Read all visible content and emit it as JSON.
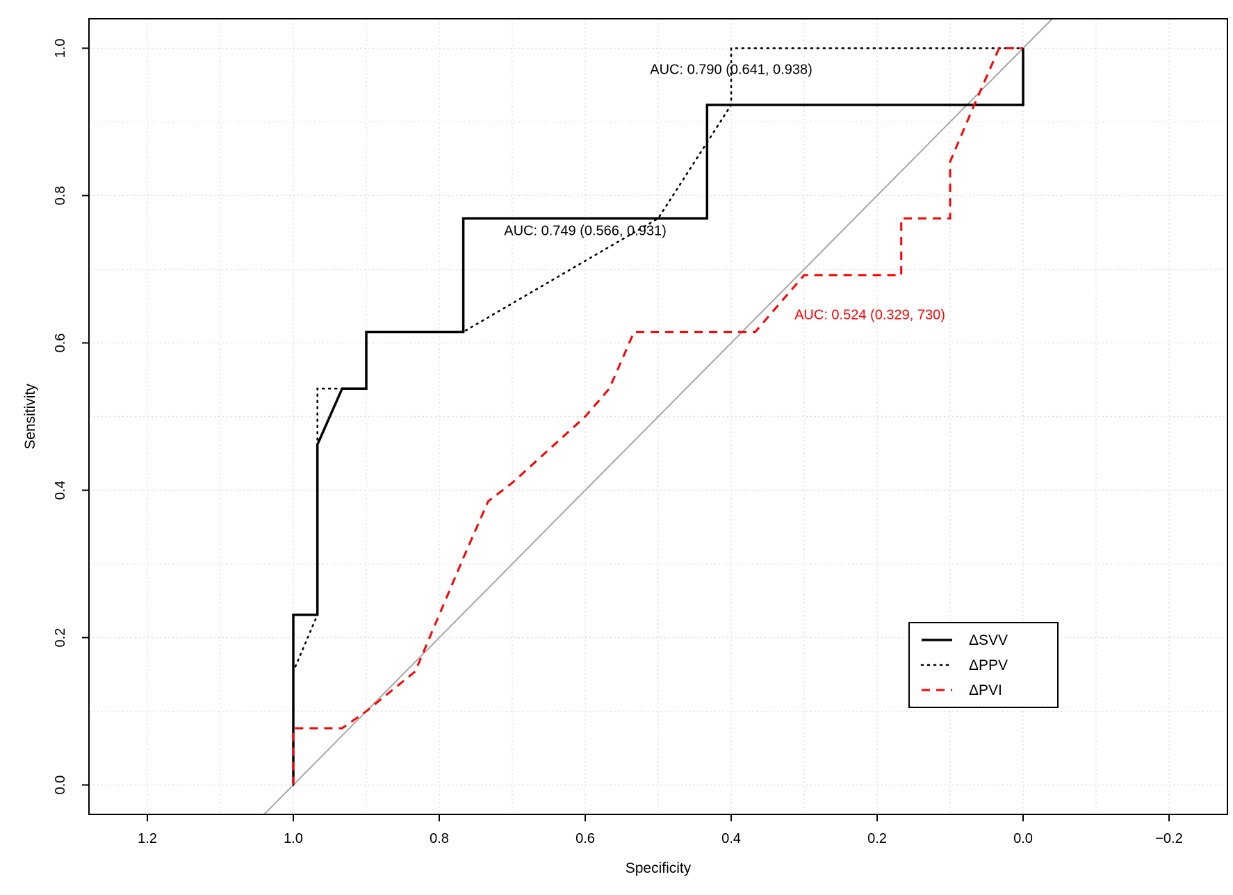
{
  "chart_data": {
    "type": "line",
    "title": "",
    "xlabel": "Specificity",
    "ylabel": "Sensitivity",
    "xlim": [
      1.28,
      -0.28
    ],
    "ylim": [
      -0.04,
      1.04
    ],
    "x_ticks": [
      1.2,
      1.0,
      0.8,
      0.6,
      0.4,
      0.2,
      0.0,
      -0.2
    ],
    "x_tick_labels": [
      "1.2",
      "1.0",
      "0.8",
      "0.6",
      "0.4",
      "0.2",
      "0.0",
      "−0.2"
    ],
    "y_ticks": [
      0.0,
      0.2,
      0.4,
      0.6,
      0.8,
      1.0
    ],
    "y_tick_labels": [
      "0.0",
      "0.2",
      "0.4",
      "0.6",
      "0.8",
      "1.0"
    ],
    "grid": true,
    "reference_line": {
      "x": [
        1.04,
        -0.04
      ],
      "y": [
        -0.04,
        1.04
      ],
      "color": "#a6a6a6"
    },
    "series": [
      {
        "name": "ΔSVV",
        "style": "solid",
        "color": "#000000",
        "x": [
          1.0,
          1.0,
          0.967,
          0.967,
          0.933,
          0.9,
          0.9,
          0.767,
          0.767,
          0.433,
          0.433,
          0.0,
          0.0
        ],
        "y": [
          0.0,
          0.231,
          0.231,
          0.462,
          0.538,
          0.538,
          0.615,
          0.615,
          0.769,
          0.769,
          0.923,
          0.923,
          1.0
        ]
      },
      {
        "name": "ΔPPV",
        "style": "dotted",
        "color": "#000000",
        "x": [
          1.0,
          1.0,
          0.967,
          0.967,
          0.967,
          0.933,
          0.9,
          0.9,
          0.833,
          0.767,
          0.5,
          0.4,
          0.4,
          0.0,
          0.0
        ],
        "y": [
          0.0,
          0.154,
          0.231,
          0.462,
          0.538,
          0.538,
          0.538,
          0.615,
          0.615,
          0.615,
          0.769,
          0.923,
          1.0,
          1.0,
          0.923
        ]
      },
      {
        "name": "ΔPVI",
        "style": "dashed",
        "color": "#ff0000",
        "x": [
          1.0,
          1.0,
          0.933,
          0.9,
          0.833,
          0.8,
          0.767,
          0.733,
          0.7,
          0.6,
          0.567,
          0.533,
          0.367,
          0.3,
          0.167,
          0.167,
          0.1,
          0.1,
          0.067,
          0.033,
          0.0
        ],
        "y": [
          0.0,
          0.077,
          0.077,
          0.1,
          0.154,
          0.231,
          0.308,
          0.385,
          0.41,
          0.5,
          0.538,
          0.615,
          0.615,
          0.692,
          0.692,
          0.769,
          0.769,
          0.846,
          0.923,
          1.0,
          1.0
        ]
      }
    ],
    "annotations": [
      {
        "text": "AUC: 0.790 (0.641, 0.938)",
        "x": 0.4,
        "y": 0.965,
        "color": "#000000"
      },
      {
        "text": "AUC: 0.749 (0.566, 0.931)",
        "x": 0.6,
        "y": 0.746,
        "color": "#000000"
      },
      {
        "text": "AUC: 0.524  (0.329, 730)",
        "x": 0.21,
        "y": 0.632,
        "color": "#ff0000"
      }
    ],
    "legend": {
      "position": "bottom-right",
      "entries": [
        "ΔSVV",
        "ΔPPV",
        "ΔPVI"
      ]
    }
  }
}
